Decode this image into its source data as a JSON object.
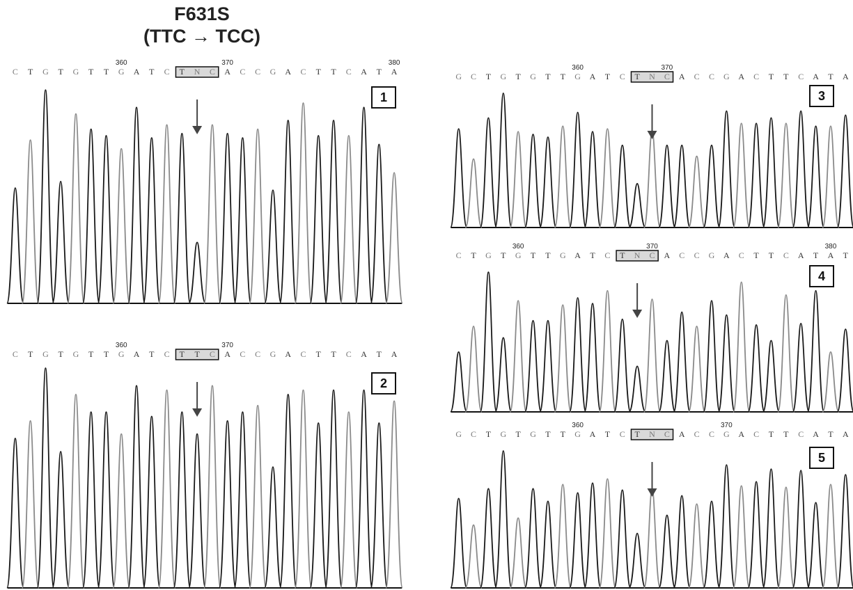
{
  "title": {
    "line1": "F631S",
    "line2": "(TTC → TCC)"
  },
  "colors": {
    "base_dark": "#1a1a1a",
    "base_light": "#8a8a8a",
    "highlight_box": "#d9d9d9",
    "arrow": "#444444"
  },
  "panels": [
    {
      "number": "1",
      "sequence": [
        "C",
        "T",
        "G",
        "T",
        "G",
        "T",
        "T",
        "G",
        "A",
        "T",
        "C",
        "T",
        "N",
        "C",
        "A",
        "C",
        "C",
        "G",
        "A",
        "C",
        "T",
        "T",
        "C",
        "A",
        "T",
        "A"
      ],
      "positions": [
        {
          "label": "360",
          "index": 7
        },
        {
          "label": "370",
          "index": 14
        },
        {
          "label": "380",
          "index": 25
        }
      ],
      "box": [
        11,
        13
      ],
      "heights": [
        0.53,
        0.75,
        0.98,
        0.56,
        0.87,
        0.8,
        0.77,
        0.71,
        0.9,
        0.76,
        0.82,
        0.78,
        0.28,
        0.82,
        0.78,
        0.76,
        0.8,
        0.52,
        0.84,
        0.92,
        0.77,
        0.84,
        0.77,
        0.9,
        0.73,
        0.6
      ],
      "mutation_peak": 12
    },
    {
      "number": "2",
      "sequence": [
        "C",
        "T",
        "G",
        "T",
        "G",
        "T",
        "T",
        "G",
        "A",
        "T",
        "C",
        "T",
        "T",
        "C",
        "A",
        "C",
        "C",
        "G",
        "A",
        "C",
        "T",
        "T",
        "C",
        "A",
        "T",
        "A"
      ],
      "positions": [
        {
          "label": "360",
          "index": 7
        },
        {
          "label": "370",
          "index": 14
        }
      ],
      "box": [
        11,
        13
      ],
      "heights": [
        0.68,
        0.76,
        1.0,
        0.62,
        0.88,
        0.8,
        0.8,
        0.7,
        0.92,
        0.78,
        0.9,
        0.8,
        0.7,
        0.92,
        0.76,
        0.8,
        0.83,
        0.55,
        0.88,
        0.9,
        0.75,
        0.9,
        0.8,
        0.9,
        0.75,
        0.85
      ],
      "mutation_peak": 12
    },
    {
      "number": "3",
      "sequence": [
        "G",
        "C",
        "T",
        "G",
        "T",
        "G",
        "T",
        "T",
        "G",
        "A",
        "T",
        "C",
        "T",
        "N",
        "C",
        "A",
        "C",
        "C",
        "G",
        "A",
        "C",
        "T",
        "T",
        "C",
        "A",
        "T",
        "A"
      ],
      "positions": [
        {
          "label": "360",
          "index": 8
        },
        {
          "label": "370",
          "index": 14
        }
      ],
      "box": [
        12,
        14
      ],
      "heights": [
        0.72,
        0.5,
        0.8,
        0.98,
        0.7,
        0.68,
        0.66,
        0.74,
        0.84,
        0.7,
        0.72,
        0.6,
        0.32,
        0.71,
        0.6,
        0.6,
        0.52,
        0.6,
        0.85,
        0.76,
        0.76,
        0.8,
        0.76,
        0.85,
        0.74,
        0.74,
        0.82
      ],
      "mutation_peak": 13
    },
    {
      "number": "4",
      "sequence": [
        "C",
        "T",
        "G",
        "T",
        "G",
        "T",
        "T",
        "G",
        "A",
        "T",
        "C",
        "T",
        "N",
        "C",
        "A",
        "C",
        "C",
        "G",
        "A",
        "C",
        "T",
        "T",
        "C",
        "A",
        "T",
        "A",
        "T"
      ],
      "positions": [
        {
          "label": "360",
          "index": 4
        },
        {
          "label": "370",
          "index": 13
        },
        {
          "label": "380",
          "index": 25
        }
      ],
      "box": [
        11,
        13
      ],
      "heights": [
        0.42,
        0.6,
        0.98,
        0.52,
        0.78,
        0.64,
        0.64,
        0.75,
        0.8,
        0.76,
        0.85,
        0.65,
        0.32,
        0.79,
        0.5,
        0.7,
        0.6,
        0.78,
        0.68,
        0.91,
        0.61,
        0.5,
        0.82,
        0.62,
        0.85,
        0.42,
        0.58
      ],
      "mutation_peak": 12
    },
    {
      "number": "5",
      "sequence": [
        "G",
        "C",
        "T",
        "G",
        "T",
        "G",
        "T",
        "T",
        "G",
        "A",
        "T",
        "C",
        "T",
        "N",
        "C",
        "A",
        "C",
        "C",
        "G",
        "A",
        "C",
        "T",
        "T",
        "C",
        "A",
        "T",
        "A"
      ],
      "positions": [
        {
          "label": "360",
          "index": 8
        },
        {
          "label": "370",
          "index": 18
        }
      ],
      "box": [
        12,
        14
      ],
      "heights": [
        0.64,
        0.45,
        0.71,
        0.98,
        0.5,
        0.71,
        0.62,
        0.74,
        0.68,
        0.75,
        0.78,
        0.7,
        0.39,
        0.71,
        0.52,
        0.66,
        0.6,
        0.62,
        0.88,
        0.73,
        0.76,
        0.85,
        0.72,
        0.84,
        0.61,
        0.74,
        0.81
      ],
      "mutation_peak": 13
    }
  ]
}
